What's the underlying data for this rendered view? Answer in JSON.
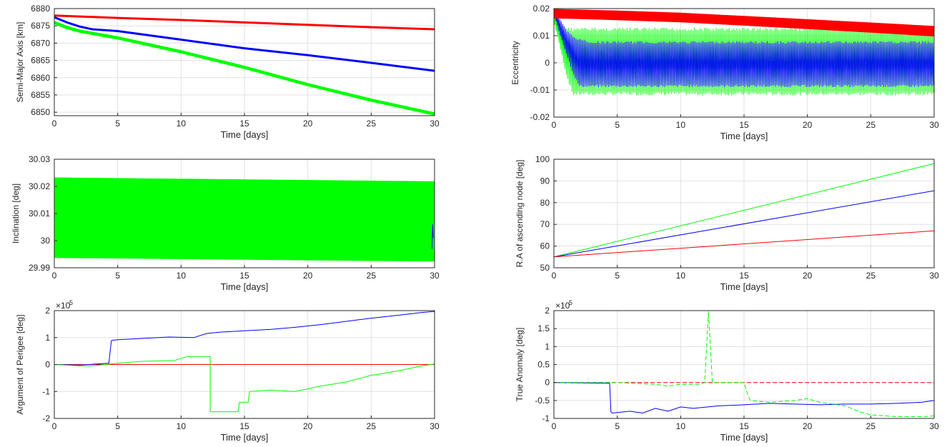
{
  "figure_colors": {
    "red": "#ff0000",
    "blue": "#0000ff",
    "green": "#00ff00",
    "grid": "#e1e1e1",
    "axis": "#262626"
  },
  "chart_data": [
    {
      "id": "sma",
      "type": "line",
      "xlabel": "Time [days]",
      "ylabel": "Semi-Major Axis [km]",
      "xlim": [
        0,
        30
      ],
      "ylim": [
        6849,
        6880
      ],
      "xticks": [
        0,
        5,
        10,
        15,
        20,
        25,
        30
      ],
      "yticks": [
        6850,
        6855,
        6860,
        6865,
        6870,
        6875,
        6880
      ],
      "grid": true,
      "series": [
        {
          "color": "#ff0000",
          "x": [
            0,
            5,
            10,
            15,
            20,
            25,
            30
          ],
          "y": [
            6878,
            6877.3,
            6876.7,
            6876,
            6875.3,
            6874.6,
            6874
          ],
          "band": 0.35
        },
        {
          "color": "#0000ff",
          "x": [
            0,
            1,
            2,
            3,
            5,
            10,
            15,
            20,
            25,
            30
          ],
          "y": [
            6877.5,
            6876,
            6874.8,
            6874,
            6873.5,
            6871,
            6868.5,
            6866.5,
            6864.3,
            6862
          ],
          "band": 0.4
        },
        {
          "color": "#00ff00",
          "x": [
            0,
            1,
            2,
            5,
            10,
            15,
            20,
            25,
            30
          ],
          "y": [
            6876,
            6874.5,
            6873.5,
            6871.5,
            6867.5,
            6863,
            6858,
            6853.5,
            6849.5
          ],
          "band": 0.6
        }
      ]
    },
    {
      "id": "ecc",
      "type": "line",
      "xlabel": "Time [days]",
      "ylabel": "Eccentricity",
      "xlim": [
        0,
        30
      ],
      "ylim": [
        -0.02,
        0.02
      ],
      "xticks": [
        0,
        5,
        10,
        15,
        20,
        25,
        30
      ],
      "yticks": [
        -0.02,
        -0.01,
        0,
        0.01,
        0.02
      ],
      "ytick_labels": [
        "-0.02",
        "-0.01",
        "0",
        "0.01",
        "0.02"
      ],
      "grid": true,
      "series": [
        {
          "color": "#00ff00",
          "style": "oscillation",
          "x": [
            0,
            0.5,
            1,
            1.5,
            2,
            30
          ],
          "upper": [
            0.02,
            0.015,
            0.013,
            0.013,
            0.013,
            0.013
          ],
          "lower": [
            0.015,
            0.005,
            -0.005,
            -0.012,
            -0.012,
            -0.012
          ]
        },
        {
          "color": "#0000ff",
          "style": "oscillation",
          "x": [
            0,
            0.5,
            1,
            1.5,
            2,
            3,
            30
          ],
          "upper": [
            0.02,
            0.016,
            0.012,
            0.01,
            0.009,
            0.008,
            0.008
          ],
          "lower": [
            0.018,
            0.01,
            0.003,
            -0.004,
            -0.009,
            -0.009,
            -0.009
          ]
        },
        {
          "color": "#ff0000",
          "style": "band",
          "x": [
            0,
            5,
            10,
            15,
            20,
            25,
            30
          ],
          "upper": [
            0.0198,
            0.0192,
            0.0184,
            0.0172,
            0.016,
            0.0148,
            0.0135
          ],
          "lower": [
            0.0165,
            0.0158,
            0.015,
            0.0138,
            0.0125,
            0.0112,
            0.0098
          ]
        }
      ]
    },
    {
      "id": "inc",
      "type": "line",
      "xlabel": "Time [days]",
      "ylabel": "Inclination [deg]",
      "xlim": [
        0,
        30
      ],
      "ylim": [
        29.99,
        30.03
      ],
      "xticks": [
        0,
        5,
        10,
        15,
        20,
        25,
        30
      ],
      "yticks": [
        29.99,
        30,
        30.01,
        30.02,
        30.03
      ],
      "ytick_labels": [
        "29.99",
        "30",
        "30.01",
        "30.02",
        "30.03"
      ],
      "grid": true,
      "series": [
        {
          "color": "#00ff00",
          "style": "band",
          "x": [
            0,
            30
          ],
          "upper": [
            30.0232,
            30.0218
          ],
          "lower": [
            29.9937,
            29.9924
          ]
        },
        {
          "color": "#0000ff",
          "x": [
            29.8,
            29.85,
            29.9
          ],
          "y": [
            29.997,
            30.006,
            30.001
          ]
        }
      ]
    },
    {
      "id": "raan",
      "type": "line",
      "xlabel": "Time [days]",
      "ylabel": "R.A of ascending node [deg]",
      "xlim": [
        0,
        30
      ],
      "ylim": [
        50,
        100
      ],
      "xticks": [
        0,
        5,
        10,
        15,
        20,
        25,
        30
      ],
      "yticks": [
        50,
        60,
        70,
        80,
        90,
        100
      ],
      "grid": true,
      "series": [
        {
          "color": "#00ff00",
          "x": [
            0,
            30
          ],
          "y": [
            55,
            98
          ]
        },
        {
          "color": "#0000ff",
          "x": [
            0,
            30
          ],
          "y": [
            55,
            85.5
          ]
        },
        {
          "color": "#ff0000",
          "x": [
            0,
            30
          ],
          "y": [
            55,
            67
          ]
        }
      ]
    },
    {
      "id": "argp",
      "type": "line",
      "xlabel": "Time [days]",
      "ylabel": "Argument of Perigee [deg]",
      "xlim": [
        0,
        30
      ],
      "ylim": [
        -2,
        2
      ],
      "y_multiplier": "×10",
      "y_exponent": "5",
      "xticks": [
        0,
        5,
        10,
        15,
        20,
        25,
        30
      ],
      "yticks": [
        -2,
        -1,
        0,
        1,
        2
      ],
      "grid": true,
      "series": [
        {
          "color": "#ff0000",
          "x": [
            0,
            30
          ],
          "y": [
            0,
            0
          ]
        },
        {
          "color": "#0000ff",
          "x": [
            0,
            2,
            4.3,
            4.5,
            4.6,
            5,
            7,
            9,
            11,
            12,
            13,
            15,
            17,
            19,
            21,
            23,
            25,
            27,
            29,
            30
          ],
          "y": [
            0,
            -0.02,
            0.05,
            0.88,
            0.9,
            0.92,
            0.97,
            1.02,
            1.0,
            1.15,
            1.2,
            1.25,
            1.3,
            1.38,
            1.48,
            1.6,
            1.72,
            1.82,
            1.93,
            1.97
          ]
        },
        {
          "color": "#00ff00",
          "x": [
            0,
            2,
            3,
            5,
            7,
            9.5,
            10.5,
            12.3,
            12.3,
            13,
            14.5,
            14.6,
            15.3,
            15.4,
            17,
            19,
            21,
            23,
            25,
            27,
            29,
            30
          ],
          "y": [
            0,
            -0.05,
            -0.05,
            0.05,
            0.12,
            0.15,
            0.3,
            0.3,
            -1.75,
            -1.75,
            -1.75,
            -1.4,
            -1.4,
            -1.0,
            -0.95,
            -1.0,
            -0.8,
            -0.65,
            -0.4,
            -0.25,
            -0.05,
            0.02
          ]
        }
      ]
    },
    {
      "id": "ta",
      "type": "line",
      "xlabel": "Time [days]",
      "ylabel": "True Anomaly [deg]",
      "xlim": [
        0,
        30
      ],
      "ylim": [
        -1,
        2
      ],
      "y_multiplier": "×10",
      "y_exponent": "5",
      "xticks": [
        0,
        5,
        10,
        15,
        20,
        25,
        30
      ],
      "yticks": [
        -1,
        -0.5,
        0,
        0.5,
        1,
        1.5,
        2
      ],
      "grid": true,
      "series": [
        {
          "color": "#ff0000",
          "dashed": true,
          "x": [
            0,
            30
          ],
          "y": [
            0,
            0
          ]
        },
        {
          "color": "#0000ff",
          "x": [
            0,
            4.4,
            4.5,
            4.6,
            6,
            7,
            8,
            9,
            10,
            11,
            13,
            15,
            17,
            19,
            21,
            23,
            25,
            27,
            29,
            30
          ],
          "y": [
            0,
            -0.02,
            -0.82,
            -0.85,
            -0.8,
            -0.85,
            -0.72,
            -0.8,
            -0.68,
            -0.72,
            -0.65,
            -0.62,
            -0.58,
            -0.6,
            -0.62,
            -0.6,
            -0.6,
            -0.58,
            -0.55,
            -0.5
          ]
        },
        {
          "color": "#00ff00",
          "dashed": true,
          "x": [
            0,
            5,
            8,
            9,
            10,
            11.5,
            11.9,
            12.2,
            12.5,
            13,
            15,
            15.3,
            15.5,
            17,
            19,
            20,
            21,
            22,
            23,
            24,
            25,
            27,
            29,
            30
          ],
          "y": [
            0,
            0,
            -0.05,
            -0.1,
            -0.05,
            -0.05,
            0,
            1.98,
            0,
            0,
            0,
            -0.35,
            -0.5,
            -0.55,
            -0.5,
            -0.45,
            -0.55,
            -0.6,
            -0.65,
            -0.8,
            -0.9,
            -0.95,
            -0.95,
            -0.93
          ]
        }
      ]
    }
  ]
}
